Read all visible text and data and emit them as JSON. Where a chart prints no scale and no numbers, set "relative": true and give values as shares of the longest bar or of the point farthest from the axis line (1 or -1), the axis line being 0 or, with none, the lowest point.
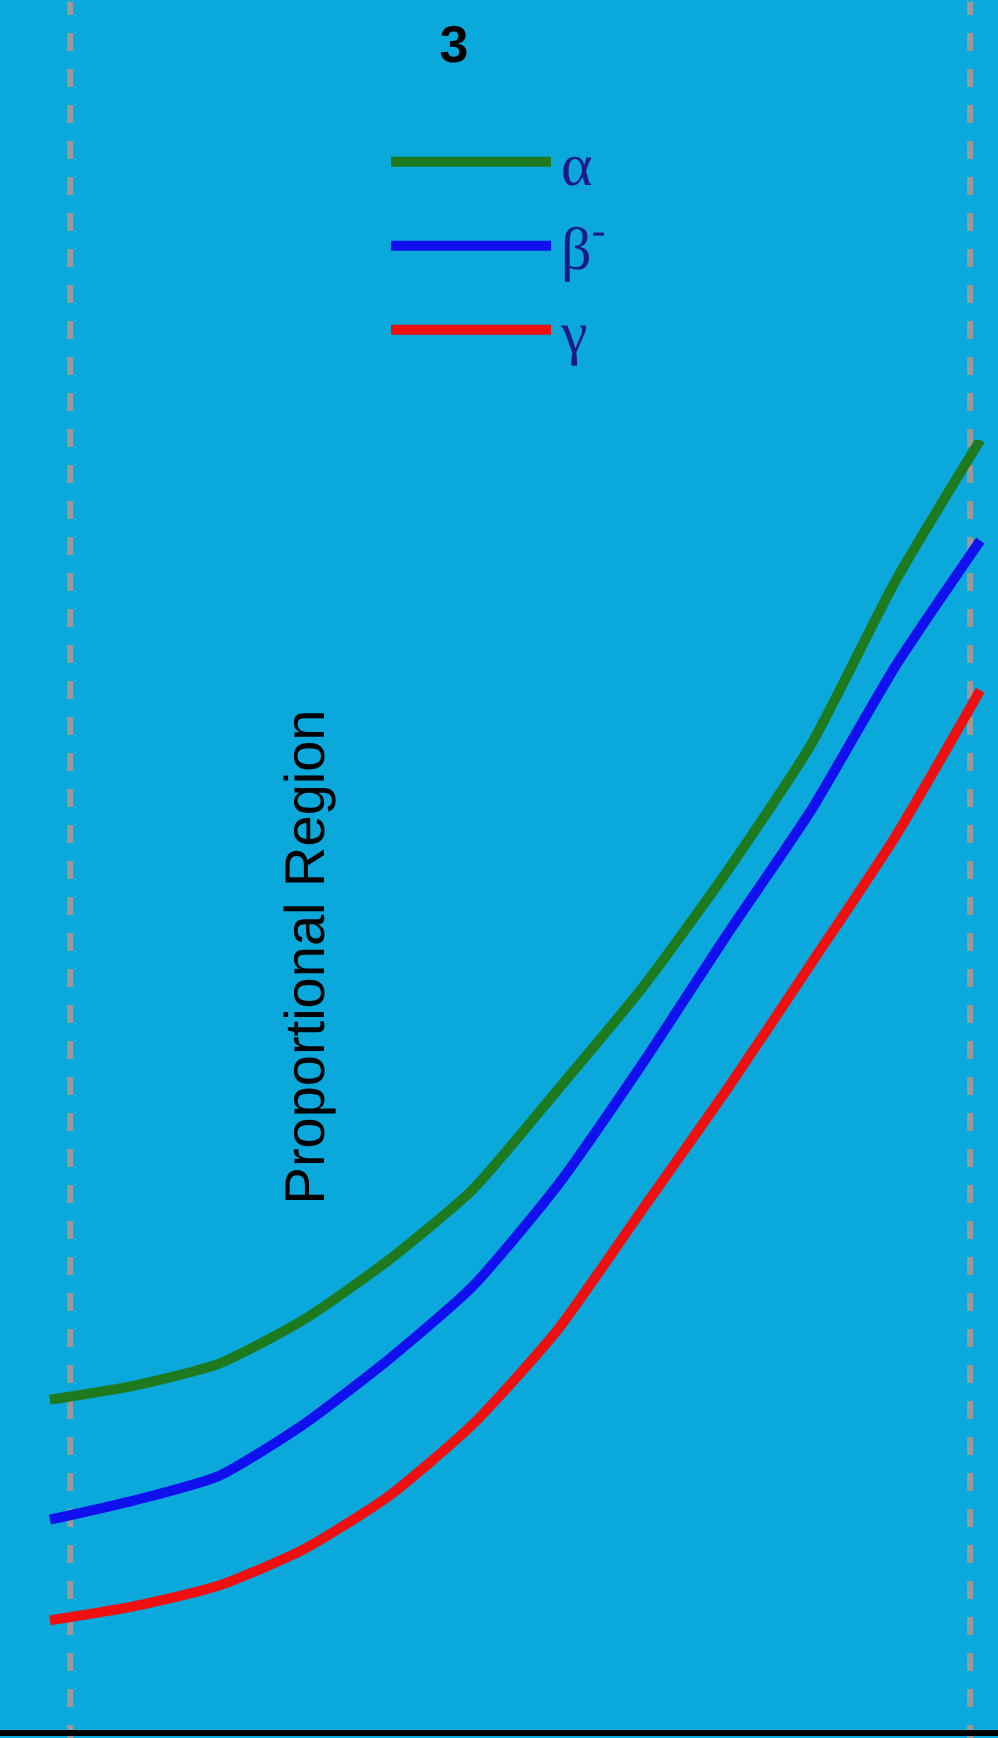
{
  "chart_data": {
    "type": "line",
    "title": "3",
    "relative": true,
    "legend": "top",
    "grid": false,
    "line_style": "solid",
    "marker": "none",
    "categories": [
      null,
      null,
      null,
      null,
      null,
      null,
      null,
      null,
      null,
      null,
      null,
      null
    ],
    "series": [
      {
        "name": "α",
        "color": "#1e7a1e",
        "values": [
          0.256,
          0.267,
          0.284,
          0.318,
          0.364,
          0.419,
          0.496,
          0.575,
          0.665,
          0.764,
          0.891,
          1.0
        ]
      },
      {
        "name": "β$^{-}$",
        "color": "#1010ee",
        "values": [
          0.163,
          0.178,
          0.197,
          0.237,
          0.287,
          0.344,
          0.422,
          0.516,
          0.616,
          0.713,
          0.825,
          0.922
        ]
      },
      {
        "name": "γ",
        "color": "#ee1010",
        "values": [
          0.085,
          0.096,
          0.112,
          0.14,
          0.181,
          0.237,
          0.31,
          0.403,
          0.496,
          0.594,
          0.693,
          0.806
        ]
      }
    ],
    "annotations": [
      "Proportional Region"
    ]
  }
}
